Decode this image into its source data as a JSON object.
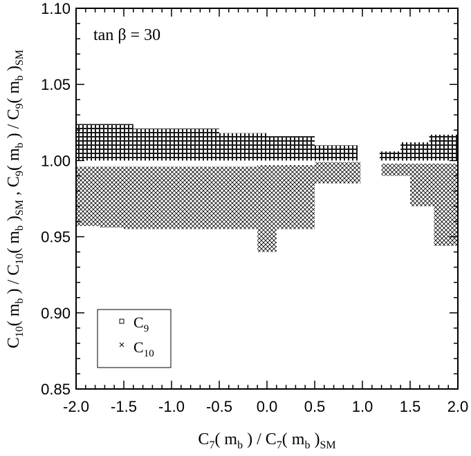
{
  "chart_data": {
    "type": "scatter",
    "annotation": {
      "text": "tan β = 30"
    },
    "xaxis": {
      "label_main": "C",
      "label_sub1": "7",
      "label_mid": "( m",
      "label_sub2": "b",
      "label_mid2": " ) / C",
      "label_sub3": "7",
      "label_mid3": "( m",
      "label_sub4": "b",
      "label_mid4": " )",
      "label_sub5": "SM",
      "range": [
        -2.0,
        2.0
      ],
      "ticks": [
        -2.0,
        -1.5,
        -1.0,
        -0.5,
        0.0,
        0.5,
        1.0,
        1.5,
        2.0
      ],
      "tick_labels": [
        "-2.0",
        "-1.5",
        "-1.0",
        "-0.5",
        "0.0",
        "0.5",
        "1.0",
        "1.5",
        "2.0"
      ]
    },
    "yaxis": {
      "label_parts": [
        {
          "t": "C",
          "sub": false
        },
        {
          "t": "10",
          "sub": true
        },
        {
          "t": "( m",
          "sub": false
        },
        {
          "t": "b",
          "sub": true
        },
        {
          "t": " ) / C",
          "sub": false
        },
        {
          "t": "10",
          "sub": true
        },
        {
          "t": "( m",
          "sub": false
        },
        {
          "t": "b",
          "sub": true
        },
        {
          "t": " )",
          "sub": false
        },
        {
          "t": "SM",
          "sub": true
        },
        {
          "t": " ,  C",
          "sub": false
        },
        {
          "t": "9",
          "sub": true
        },
        {
          "t": "( m",
          "sub": false
        },
        {
          "t": "b",
          "sub": true
        },
        {
          "t": " ) / C",
          "sub": false
        },
        {
          "t": "9",
          "sub": true
        },
        {
          "t": "( m",
          "sub": false
        },
        {
          "t": "b",
          "sub": true
        },
        {
          "t": " )",
          "sub": false
        },
        {
          "t": "SM",
          "sub": true
        }
      ],
      "range": [
        0.85,
        1.1
      ],
      "ticks": [
        0.85,
        0.9,
        0.95,
        1.0,
        1.05,
        1.1
      ],
      "tick_labels": [
        "0.85",
        "0.90",
        "0.95",
        "1.00",
        "1.05",
        "1.10"
      ]
    },
    "legend": {
      "placement": "bottom-left",
      "entries": [
        {
          "marker": "square",
          "label": "C",
          "sub": "9"
        },
        {
          "marker": "cross",
          "label": "C",
          "sub": "10"
        }
      ]
    },
    "series": [
      {
        "marker": "square",
        "regions": [
          {
            "x": [
              -2.0,
              -1.4
            ],
            "ylow": 1.0,
            "yhigh": 1.024
          },
          {
            "x": [
              -1.4,
              -0.5
            ],
            "ylow": 1.0,
            "yhigh": 1.021
          },
          {
            "x": [
              -0.5,
              0.0
            ],
            "ylow": 1.0,
            "yhigh": 1.018
          },
          {
            "x": [
              0.0,
              0.5
            ],
            "ylow": 1.0,
            "yhigh": 1.016
          },
          {
            "x": [
              0.5,
              0.95
            ],
            "ylow": 1.0,
            "yhigh": 1.01
          },
          {
            "x": [
              1.18,
              1.4
            ],
            "ylow": 1.0,
            "yhigh": 1.006
          },
          {
            "x": [
              1.4,
              1.7
            ],
            "ylow": 1.0,
            "yhigh": 1.012
          },
          {
            "x": [
              1.7,
              2.0
            ],
            "ylow": 1.0,
            "yhigh": 1.017
          }
        ]
      },
      {
        "marker": "cross",
        "regions": [
          {
            "x": [
              -2.0,
              -1.75
            ],
            "ylow": 0.957,
            "yhigh": 0.996
          },
          {
            "x": [
              -1.75,
              -1.5
            ],
            "ylow": 0.956,
            "yhigh": 0.996
          },
          {
            "x": [
              -1.5,
              -0.9
            ],
            "ylow": 0.955,
            "yhigh": 0.996
          },
          {
            "x": [
              -0.9,
              -0.1
            ],
            "ylow": 0.955,
            "yhigh": 0.996
          },
          {
            "x": [
              -0.1,
              0.1
            ],
            "ylow": 0.94,
            "yhigh": 0.997
          },
          {
            "x": [
              0.1,
              0.5
            ],
            "ylow": 0.955,
            "yhigh": 0.997
          },
          {
            "x": [
              0.5,
              0.98
            ],
            "ylow": 0.985,
            "yhigh": 0.999
          },
          {
            "x": [
              1.2,
              1.5
            ],
            "ylow": 0.99,
            "yhigh": 0.998
          },
          {
            "x": [
              1.5,
              1.75
            ],
            "ylow": 0.97,
            "yhigh": 0.998
          },
          {
            "x": [
              1.75,
              2.0
            ],
            "ylow": 0.944,
            "yhigh": 0.998
          }
        ]
      }
    ]
  }
}
